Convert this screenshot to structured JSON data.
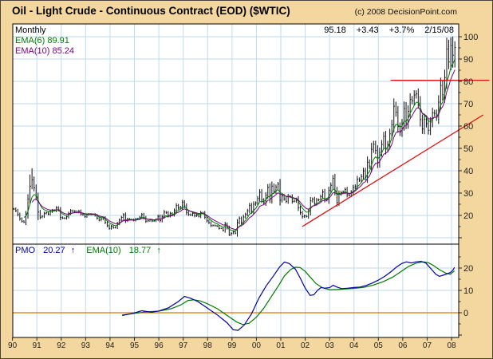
{
  "header": {
    "title": "Oil - Light Crude - Continuous Contract (EOD) ($WTIC)",
    "copyright": "(c) 2008 DecisionPoint.com"
  },
  "price_pane": {
    "timeframe_label": "Monthly",
    "ema6_label": "EMA(6) 89.91",
    "ema10_label": "EMA(10) 85.24",
    "quote": {
      "last": "95.18",
      "change": "+3.43",
      "pct": "+3.7%",
      "date": "2/15/08"
    }
  },
  "pmo_pane": {
    "pmo_label": "PMO",
    "pmo_value": "20.27",
    "ema_label": "EMA(10)",
    "ema_value": "18.77",
    "up_arrow": "↑"
  },
  "colors": {
    "background": "#f4d79e",
    "panel": "#ffffff",
    "grid": "#bfdaf0",
    "border": "#000000",
    "bars": "#111111",
    "ema6": "#007a00",
    "ema10": "#7a007a",
    "pmo": "#0000a8",
    "pmo_ema": "#007a00",
    "zero_line": "#e07800",
    "trendline": "#dd1010",
    "axis_text": "#222222"
  },
  "chart_data": {
    "type": "bar",
    "subtype": "monthly-ohlc-with-indicator",
    "title": "Oil - Light Crude - Continuous Contract (EOD) ($WTIC)",
    "timeframe": "Monthly",
    "x_range": {
      "start_year": 1990,
      "start_month": 1,
      "end_year": 2008,
      "end_month": 2
    },
    "x_tick_labels": [
      "90",
      "91",
      "92",
      "93",
      "94",
      "95",
      "96",
      "97",
      "98",
      "99",
      "00",
      "01",
      "02",
      "03",
      "04",
      "05",
      "06",
      "07",
      "08"
    ],
    "price": {
      "axis_ticks": [
        20,
        30,
        40,
        50,
        60,
        70,
        80,
        90,
        100
      ],
      "ylim": [
        7,
        105.5
      ],
      "last": 95.18,
      "change": 3.43,
      "change_pct": 3.7,
      "as_of": "2/15/08",
      "closes": [
        22.9,
        22.1,
        20.4,
        18.5,
        17.4,
        17.0,
        20.7,
        27.3,
        33.1,
        35.9,
        32.3,
        28.4,
        21.5,
        19.2,
        19.6,
        20.9,
        21.2,
        20.6,
        21.7,
        22.3,
        22.2,
        23.4,
        22.5,
        19.1,
        18.8,
        18.7,
        19.4,
        20.9,
        22.1,
        21.9,
        21.8,
        21.5,
        21.9,
        20.6,
        20.3,
        19.5,
        20.3,
        20.6,
        20.4,
        20.5,
        20.0,
        18.8,
        17.9,
        18.4,
        18.8,
        16.9,
        15.4,
        14.2,
        15.2,
        14.5,
        14.7,
        16.4,
        17.9,
        19.1,
        20.3,
        17.6,
        18.4,
        18.2,
        18.1,
        17.8,
        18.4,
        18.5,
        19.2,
        20.4,
        19.0,
        17.4,
        17.6,
        18.0,
        17.5,
        17.6,
        18.2,
        19.6,
        17.7,
        19.5,
        21.5,
        21.2,
        19.8,
        20.9,
        20.4,
        22.2,
        24.4,
        23.3,
        23.7,
        25.9,
        24.2,
        21.3,
        20.4,
        20.2,
        20.9,
        19.8,
        20.1,
        19.6,
        21.2,
        21.1,
        19.2,
        17.6,
        16.7,
        15.4,
        15.6,
        15.4,
        15.2,
        14.2,
        14.2,
        13.3,
        16.1,
        14.4,
        11.2,
        12.0,
        12.8,
        12.0,
        16.8,
        18.7,
        16.8,
        19.3,
        20.5,
        22.1,
        24.5,
        21.8,
        25.0,
        25.6,
        27.6,
        30.4,
        26.9,
        25.7,
        29.0,
        32.5,
        27.4,
        33.1,
        30.8,
        32.7,
        34.0,
        26.8,
        28.7,
        27.4,
        26.3,
        28.5,
        28.4,
        26.3,
        26.4,
        27.2,
        23.4,
        21.2,
        19.4,
        19.8,
        19.5,
        21.7,
        26.5,
        27.3,
        25.3,
        26.9,
        27.0,
        28.4,
        30.5,
        27.2,
        26.9,
        31.2,
        33.5,
        36.6,
        31.0,
        25.8,
        29.6,
        30.2,
        30.5,
        31.6,
        29.2,
        29.1,
        30.4,
        32.5,
        33.1,
        36.2,
        35.8,
        37.4,
        39.9,
        37.1,
        43.8,
        42.1,
        49.6,
        51.8,
        49.1,
        43.5,
        48.2,
        51.8,
        55.4,
        49.7,
        51.8,
        56.5,
        60.6,
        68.9,
        66.2,
        59.8,
        57.3,
        61.0,
        67.9,
        61.4,
        66.6,
        71.9,
        71.3,
        73.9,
        74.4,
        70.3,
        62.9,
        58.7,
        63.1,
        61.1,
        58.1,
        61.8,
        65.9,
        65.7,
        64.0,
        70.7,
        78.2,
        74.0,
        81.7,
        94.5,
        88.7,
        96.0,
        91.7,
        95.2
      ],
      "high_overrides": {
        "8": 38.3,
        "9": 41.1,
        "12": 30.2,
        "214": 98.6,
        "216": 100.1
      },
      "low_overrides": {
        "12": 17.9,
        "106": 10.8,
        "107": 10.9,
        "216": 86.1,
        "217": 86.2
      },
      "overlays": [
        {
          "name": "EMA(6)",
          "current": 89.91
        },
        {
          "name": "EMA(10)",
          "current": 85.24
        }
      ]
    },
    "trendlines": [
      {
        "kind": "horizontal_resistance",
        "price": 80.5,
        "year_from": 2005.5,
        "year_to": 2009.55
      },
      {
        "kind": "rising_support",
        "year_from": 2001.88,
        "price_from": 15.0,
        "year_to": 2009.3,
        "price_to": 65.0
      }
    ],
    "pmo_panel": {
      "axis_ticks": [
        0,
        10,
        20
      ],
      "ylim": [
        -11.5,
        30.5
      ],
      "zero_line": 0,
      "pmo_current": 20.27,
      "ema10_current": 18.77,
      "pmo_points": [
        [
          1994.5,
          -1.2
        ],
        [
          1994.9,
          -0.4
        ],
        [
          1995.3,
          0.9
        ],
        [
          1995.7,
          0.2
        ],
        [
          1996.0,
          0.8
        ],
        [
          1996.4,
          2.2
        ],
        [
          1996.8,
          5.0
        ],
        [
          1997.05,
          7.3
        ],
        [
          1997.3,
          6.5
        ],
        [
          1997.6,
          5.0
        ],
        [
          1998.0,
          2.0
        ],
        [
          1998.4,
          -1.0
        ],
        [
          1998.8,
          -4.5
        ],
        [
          1999.05,
          -7.6
        ],
        [
          1999.25,
          -7.9
        ],
        [
          1999.5,
          -5.5
        ],
        [
          1999.8,
          -0.5
        ],
        [
          2000.1,
          6.5
        ],
        [
          2000.4,
          12.0
        ],
        [
          2000.7,
          16.5
        ],
        [
          2000.95,
          20.5
        ],
        [
          2001.15,
          22.7
        ],
        [
          2001.35,
          22.0
        ],
        [
          2001.6,
          19.5
        ],
        [
          2001.8,
          15.5
        ],
        [
          2002.0,
          11.0
        ],
        [
          2002.2,
          7.8
        ],
        [
          2002.35,
          8.0
        ],
        [
          2002.5,
          10.0
        ],
        [
          2002.65,
          11.3
        ],
        [
          2002.8,
          11.0
        ],
        [
          2003.0,
          11.2
        ],
        [
          2003.15,
          12.3
        ],
        [
          2003.3,
          11.5
        ],
        [
          2003.5,
          10.8
        ],
        [
          2003.75,
          11.0
        ],
        [
          2004.0,
          11.3
        ],
        [
          2004.25,
          11.5
        ],
        [
          2004.5,
          12.2
        ],
        [
          2004.75,
          13.3
        ],
        [
          2005.0,
          14.6
        ],
        [
          2005.25,
          16.2
        ],
        [
          2005.5,
          18.2
        ],
        [
          2005.75,
          20.5
        ],
        [
          2005.95,
          22.0
        ],
        [
          2006.15,
          22.8
        ],
        [
          2006.35,
          22.3
        ],
        [
          2006.55,
          22.8
        ],
        [
          2006.75,
          23.0
        ],
        [
          2006.95,
          22.2
        ],
        [
          2007.15,
          19.8
        ],
        [
          2007.35,
          17.3
        ],
        [
          2007.5,
          16.3
        ],
        [
          2007.65,
          16.8
        ],
        [
          2007.8,
          17.3
        ],
        [
          2007.95,
          18.0
        ],
        [
          2008.05,
          19.0
        ],
        [
          2008.12,
          20.27
        ]
      ],
      "ema_points": [
        [
          1994.5,
          -1.0
        ],
        [
          1995.0,
          -0.3
        ],
        [
          1995.5,
          0.4
        ],
        [
          1996.0,
          0.7
        ],
        [
          1996.5,
          1.8
        ],
        [
          1996.9,
          3.5
        ],
        [
          1997.2,
          5.5
        ],
        [
          1997.45,
          5.8
        ],
        [
          1997.7,
          5.3
        ],
        [
          1998.0,
          4.0
        ],
        [
          1998.4,
          1.8
        ],
        [
          1998.8,
          -1.2
        ],
        [
          1999.2,
          -4.2
        ],
        [
          1999.45,
          -5.3
        ],
        [
          1999.7,
          -4.7
        ],
        [
          2000.0,
          -2.0
        ],
        [
          2000.3,
          2.0
        ],
        [
          2000.6,
          7.0
        ],
        [
          2000.9,
          12.0
        ],
        [
          2001.15,
          16.5
        ],
        [
          2001.4,
          19.3
        ],
        [
          2001.6,
          20.4
        ],
        [
          2001.8,
          20.2
        ],
        [
          2002.0,
          18.5
        ],
        [
          2002.2,
          16.0
        ],
        [
          2002.45,
          13.0
        ],
        [
          2002.7,
          11.2
        ],
        [
          2003.0,
          10.3
        ],
        [
          2003.3,
          10.4
        ],
        [
          2003.6,
          10.6
        ],
        [
          2004.0,
          10.9
        ],
        [
          2004.4,
          11.4
        ],
        [
          2004.8,
          12.4
        ],
        [
          2005.2,
          13.9
        ],
        [
          2005.6,
          16.0
        ],
        [
          2005.95,
          18.6
        ],
        [
          2006.25,
          20.8
        ],
        [
          2006.55,
          22.2
        ],
        [
          2006.85,
          22.8
        ],
        [
          2007.05,
          22.4
        ],
        [
          2007.25,
          21.2
        ],
        [
          2007.5,
          19.3
        ],
        [
          2007.75,
          17.8
        ],
        [
          2007.95,
          17.2
        ],
        [
          2008.12,
          18.77
        ]
      ]
    }
  }
}
